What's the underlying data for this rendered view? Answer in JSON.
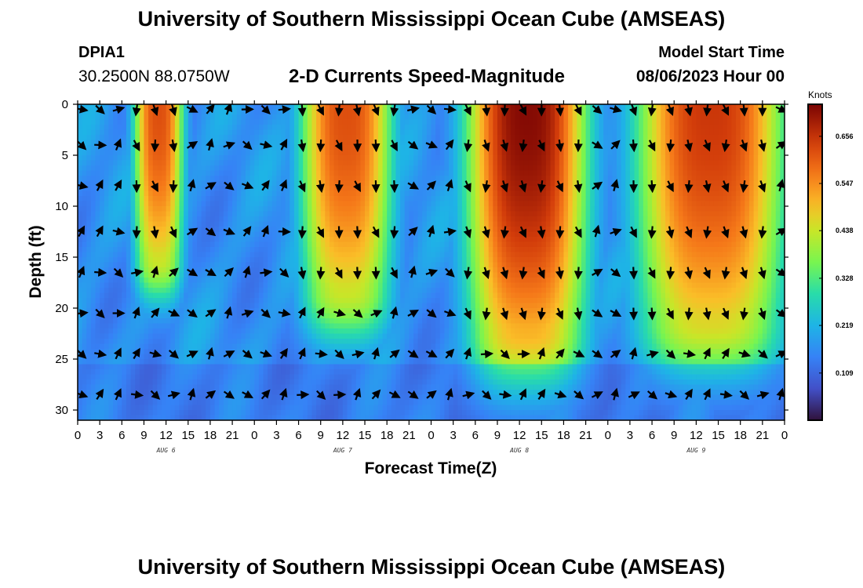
{
  "header": {
    "title": "University of Southern Mississippi Ocean Cube (AMSEAS)",
    "station_id": "DPIA1",
    "station_coords": "30.2500N  88.0750W",
    "subtitle": "2-D Currents Speed-Magnitude",
    "start_label": "Model Start Time",
    "start_value": "08/06/2023 Hour 00"
  },
  "footer": {
    "title": "University of Southern Mississippi Ocean Cube (AMSEAS)"
  },
  "chart_data": {
    "type": "heatmap",
    "title": "2-D Currents Speed-Magnitude",
    "xlabel": "Forecast Time(Z)",
    "ylabel": "Depth (ft)",
    "x_range_hours": [
      0,
      96
    ],
    "xlim_hours": [
      0,
      96
    ],
    "ylim": [
      31,
      0
    ],
    "x_tick_labels": [
      "0",
      "3",
      "6",
      "9",
      "12",
      "15",
      "18",
      "21",
      "0",
      "3",
      "6",
      "9",
      "12",
      "15",
      "18",
      "21",
      "0",
      "3",
      "6",
      "9",
      "12",
      "15",
      "18",
      "21",
      "0",
      "3",
      "6",
      "9",
      "12",
      "15",
      "18",
      "21",
      "0"
    ],
    "y_ticks": [
      0,
      5,
      10,
      15,
      20,
      25,
      30
    ],
    "day_labels": [
      {
        "label": "AUG 6",
        "hour": 12
      },
      {
        "label": "AUG 7",
        "hour": 36
      },
      {
        "label": "AUG 8",
        "hour": 60
      },
      {
        "label": "AUG 9",
        "hour": 84
      }
    ],
    "colorbar": {
      "unit": "Knots",
      "min": 0.0,
      "max": 0.73,
      "tick_values": [
        0.109,
        0.219,
        0.328,
        0.438,
        0.547,
        0.656
      ],
      "tick_labels": [
        "0.109",
        "0.219",
        "0.328",
        "0.438",
        "0.547",
        "0.656"
      ]
    },
    "high_speed_events": [
      {
        "center_hour": 11,
        "start_hour": 7,
        "end_hour": 14,
        "max_depth_ft": 15,
        "peak": 0.62
      },
      {
        "center_hour": 36.5,
        "start_hour": 30,
        "end_hour": 43,
        "max_depth_ft": 18,
        "peak": 0.62
      },
      {
        "center_hour": 61,
        "start_hour": 52,
        "end_hour": 69,
        "max_depth_ft": 22,
        "peak": 0.72
      },
      {
        "center_hour": 86,
        "start_hour": 74,
        "end_hour": 95,
        "max_depth_ft": 21,
        "peak": 0.65
      }
    ],
    "vector_depths_ft": [
      0.5,
      4,
      8,
      12.5,
      16.5,
      20.5,
      24.5,
      28.5
    ],
    "vector_hours_step": 2.5
  }
}
